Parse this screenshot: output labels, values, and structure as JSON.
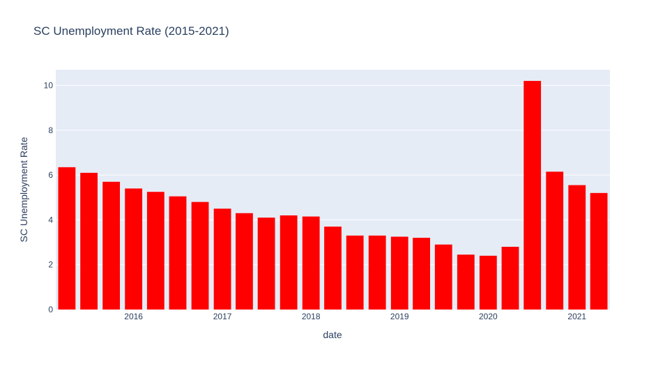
{
  "chart_data": {
    "type": "bar",
    "title": "SC Unemployment Rate (2015-2021)",
    "xlabel": "date",
    "ylabel": "SC Unemployment Rate",
    "x": [
      "2015-04",
      "2015-07",
      "2015-10",
      "2016-01",
      "2016-04",
      "2016-07",
      "2016-10",
      "2017-01",
      "2017-04",
      "2017-07",
      "2017-10",
      "2018-01",
      "2018-04",
      "2018-07",
      "2018-10",
      "2019-01",
      "2019-04",
      "2019-07",
      "2019-10",
      "2020-01",
      "2020-04",
      "2020-07",
      "2020-10",
      "2021-01",
      "2021-04"
    ],
    "values": [
      6.35,
      6.1,
      5.7,
      5.4,
      5.25,
      5.05,
      4.8,
      4.5,
      4.3,
      4.1,
      4.2,
      4.15,
      3.7,
      3.3,
      3.3,
      3.25,
      3.2,
      2.9,
      2.45,
      2.4,
      2.8,
      10.2,
      6.15,
      5.55,
      5.2
    ],
    "xticks": [
      "2016",
      "2017",
      "2018",
      "2019",
      "2020",
      "2021"
    ],
    "yticks": [
      "0",
      "2",
      "4",
      "6",
      "8",
      "10"
    ],
    "ylim": [
      0,
      10.7
    ],
    "grid": true,
    "colors": {
      "bar": "#ff0000",
      "plot_bg": "#e5ecf6",
      "grid": "#ffffff",
      "text": "#2a3f5f"
    }
  }
}
